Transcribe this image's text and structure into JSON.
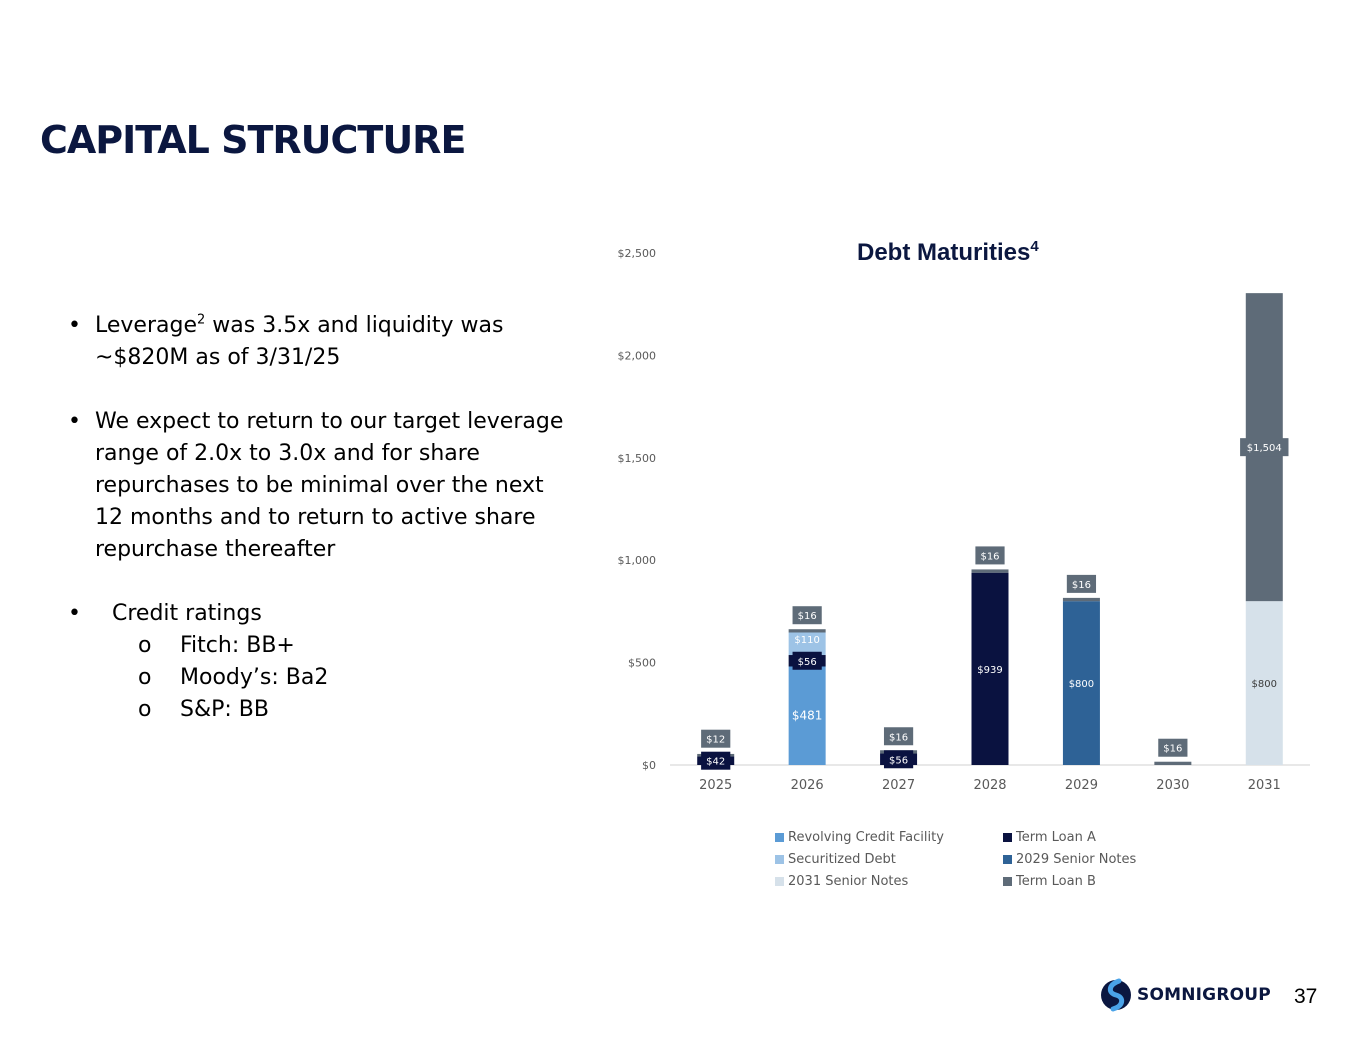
{
  "slide": {
    "title": "CAPITAL STRUCTURE",
    "page_number": "37",
    "logo_text": "SOMNIGROUP"
  },
  "bullets": {
    "b1_pre": "Leverage",
    "b1_sup": "2",
    "b1_line1": " was 3.5x and liquidity was",
    "b1_line2": "~$820M as of 3/31/25",
    "b2_lines": [
      "We expect to return to our target leverage",
      "range of 2.0x to 3.0x and for share",
      "repurchases to be minimal over the next",
      "12 months and to return to active share",
      "repurchase thereafter"
    ],
    "b3": "Credit ratings",
    "ratings": [
      "Fitch: BB+",
      "Moody’s: Ba2",
      "S&P: BB"
    ],
    "bullet_char": "•",
    "sub_char": "o"
  },
  "chart_data": {
    "type": "bar",
    "stacked": true,
    "title": "Debt Maturities",
    "title_sup": "4",
    "categories": [
      "2025",
      "2026",
      "2027",
      "2028",
      "2029",
      "2030",
      "2031"
    ],
    "y_tick_labels": [
      "$0",
      "$500",
      "$1,000",
      "$1,500",
      "$2,000",
      "$2,500"
    ],
    "y_ticks": [
      0,
      500,
      1000,
      1500,
      2000,
      2500
    ],
    "ylim": [
      0,
      2500
    ],
    "grid": false,
    "legend_position": "bottom",
    "series": [
      {
        "name": "Revolving Credit Facility",
        "color": "#5b9bd5",
        "values": [
          0,
          481,
          0,
          0,
          0,
          0,
          0
        ],
        "labels": [
          "",
          "$481",
          "",
          "",
          "",
          "",
          ""
        ]
      },
      {
        "name": "Term Loan A",
        "color": "#0a1240",
        "values": [
          42,
          56,
          56,
          939,
          0,
          0,
          0
        ],
        "labels": [
          "$42",
          "$56",
          "$56",
          "$939",
          "",
          "",
          ""
        ]
      },
      {
        "name": "Securitized Debt",
        "color": "#9dc3e6",
        "values": [
          0,
          110,
          0,
          0,
          0,
          0,
          0
        ],
        "labels": [
          "",
          "$110",
          "",
          "",
          "",
          "",
          ""
        ]
      },
      {
        "name": "2029 Senior Notes",
        "color": "#2e6296",
        "values": [
          0,
          0,
          0,
          0,
          800,
          0,
          0
        ],
        "labels": [
          "",
          "",
          "",
          "",
          "$800",
          "",
          ""
        ]
      },
      {
        "name": "2031 Senior Notes",
        "color": "#d6e1ea",
        "values": [
          0,
          0,
          0,
          0,
          0,
          0,
          800
        ],
        "labels": [
          "",
          "",
          "",
          "",
          "",
          "",
          "$800"
        ]
      },
      {
        "name": "Term Loan B",
        "color": "#5e6b78",
        "values": [
          12,
          16,
          16,
          16,
          16,
          16,
          1504
        ],
        "labels": [
          "$12",
          "$16",
          "$16",
          "$16",
          "$16",
          "$16",
          "$1,504"
        ]
      }
    ],
    "stack_order": [
      0,
      1,
      2,
      3,
      4,
      5
    ]
  }
}
